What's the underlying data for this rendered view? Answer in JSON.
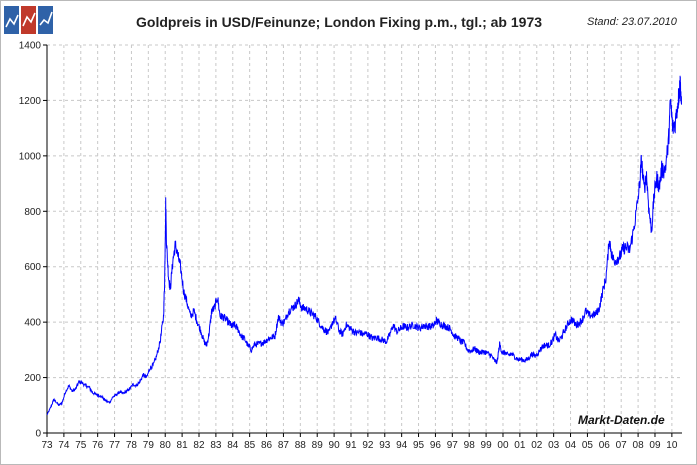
{
  "header": {
    "title": "Goldpreis in USD/Feinunze; London Fixing p.m., tgl.; ab 1973",
    "stand": "Stand: 23.07.2010",
    "watermark": "Markt-Daten.de"
  },
  "colors": {
    "series": "#0000ff",
    "grid": "#c8c8c8",
    "axis": "#000000",
    "logo_blue": "#2f62a8",
    "logo_red": "#c0392b"
  },
  "logo_icons": [
    "chart-line-icon",
    "chart-line-icon",
    "chart-line-icon"
  ],
  "chart_data": {
    "type": "line",
    "title": "Goldpreis in USD/Feinunze; London Fixing p.m., tgl.; ab 1973",
    "xlabel": "",
    "ylabel": "",
    "grid": true,
    "ylim": [
      0,
      1400
    ],
    "xlim": [
      1973.0,
      2010.6
    ],
    "yticks": [
      0,
      200,
      400,
      600,
      800,
      1000,
      1200,
      1400
    ],
    "xticks": [
      "73",
      "74",
      "75",
      "76",
      "77",
      "78",
      "79",
      "80",
      "81",
      "82",
      "83",
      "84",
      "85",
      "86",
      "87",
      "88",
      "89",
      "90",
      "91",
      "92",
      "93",
      "94",
      "95",
      "96",
      "97",
      "98",
      "99",
      "00",
      "01",
      "02",
      "03",
      "04",
      "05",
      "06",
      "07",
      "08",
      "09",
      "10"
    ],
    "series": [
      {
        "values": [
          [
            1973.0,
            65
          ],
          [
            1973.2,
            90
          ],
          [
            1973.4,
            120
          ],
          [
            1973.5,
            115
          ],
          [
            1973.7,
            100
          ],
          [
            1973.9,
            110
          ],
          [
            1974.1,
            150
          ],
          [
            1974.3,
            170
          ],
          [
            1974.5,
            150
          ],
          [
            1974.7,
            160
          ],
          [
            1974.9,
            185
          ],
          [
            1975.1,
            180
          ],
          [
            1975.3,
            170
          ],
          [
            1975.5,
            165
          ],
          [
            1975.7,
            145
          ],
          [
            1975.9,
            140
          ],
          [
            1976.1,
            135
          ],
          [
            1976.3,
            128
          ],
          [
            1976.5,
            115
          ],
          [
            1976.7,
            110
          ],
          [
            1976.9,
            130
          ],
          [
            1977.1,
            138
          ],
          [
            1977.3,
            148
          ],
          [
            1977.5,
            142
          ],
          [
            1977.7,
            150
          ],
          [
            1977.9,
            160
          ],
          [
            1978.1,
            175
          ],
          [
            1978.3,
            172
          ],
          [
            1978.5,
            185
          ],
          [
            1978.7,
            210
          ],
          [
            1978.9,
            200
          ],
          [
            1979.1,
            235
          ],
          [
            1979.3,
            245
          ],
          [
            1979.5,
            280
          ],
          [
            1979.7,
            330
          ],
          [
            1979.9,
            420
          ],
          [
            1979.97,
            560
          ],
          [
            1980.03,
            830
          ],
          [
            1980.08,
            680
          ],
          [
            1980.2,
            560
          ],
          [
            1980.3,
            520
          ],
          [
            1980.45,
            620
          ],
          [
            1980.6,
            680
          ],
          [
            1980.75,
            640
          ],
          [
            1980.9,
            600
          ],
          [
            1981.1,
            510
          ],
          [
            1981.3,
            470
          ],
          [
            1981.5,
            420
          ],
          [
            1981.7,
            440
          ],
          [
            1981.9,
            400
          ],
          [
            1982.1,
            370
          ],
          [
            1982.3,
            330
          ],
          [
            1982.45,
            315
          ],
          [
            1982.6,
            360
          ],
          [
            1982.75,
            440
          ],
          [
            1982.9,
            450
          ],
          [
            1983.1,
            490
          ],
          [
            1983.25,
            420
          ],
          [
            1983.4,
            420
          ],
          [
            1983.6,
            410
          ],
          [
            1983.8,
            395
          ],
          [
            1983.95,
            385
          ],
          [
            1984.1,
            390
          ],
          [
            1984.3,
            375
          ],
          [
            1984.5,
            350
          ],
          [
            1984.7,
            340
          ],
          [
            1984.9,
            315
          ],
          [
            1985.1,
            300
          ],
          [
            1985.3,
            320
          ],
          [
            1985.5,
            320
          ],
          [
            1985.7,
            325
          ],
          [
            1985.9,
            330
          ],
          [
            1986.1,
            340
          ],
          [
            1986.3,
            345
          ],
          [
            1986.5,
            350
          ],
          [
            1986.7,
            420
          ],
          [
            1986.9,
            395
          ],
          [
            1987.1,
            405
          ],
          [
            1987.3,
            440
          ],
          [
            1987.5,
            450
          ],
          [
            1987.7,
            460
          ],
          [
            1987.9,
            480
          ],
          [
            1988.1,
            450
          ],
          [
            1988.3,
            450
          ],
          [
            1988.5,
            440
          ],
          [
            1988.7,
            430
          ],
          [
            1988.9,
            420
          ],
          [
            1989.1,
            400
          ],
          [
            1989.3,
            380
          ],
          [
            1989.5,
            370
          ],
          [
            1989.7,
            360
          ],
          [
            1989.9,
            400
          ],
          [
            1990.1,
            410
          ],
          [
            1990.3,
            370
          ],
          [
            1990.5,
            355
          ],
          [
            1990.7,
            390
          ],
          [
            1990.9,
            380
          ],
          [
            1991.1,
            370
          ],
          [
            1991.3,
            360
          ],
          [
            1991.5,
            365
          ],
          [
            1991.7,
            355
          ],
          [
            1991.9,
            360
          ],
          [
            1992.1,
            350
          ],
          [
            1992.3,
            340
          ],
          [
            1992.5,
            345
          ],
          [
            1992.7,
            340
          ],
          [
            1992.9,
            335
          ],
          [
            1993.1,
            330
          ],
          [
            1993.3,
            355
          ],
          [
            1993.5,
            390
          ],
          [
            1993.7,
            365
          ],
          [
            1993.9,
            375
          ],
          [
            1994.1,
            385
          ],
          [
            1994.3,
            380
          ],
          [
            1994.5,
            385
          ],
          [
            1994.7,
            390
          ],
          [
            1994.9,
            383
          ],
          [
            1995.1,
            378
          ],
          [
            1995.3,
            388
          ],
          [
            1995.5,
            385
          ],
          [
            1995.7,
            384
          ],
          [
            1995.9,
            387
          ],
          [
            1996.05,
            405
          ],
          [
            1996.2,
            400
          ],
          [
            1996.4,
            390
          ],
          [
            1996.6,
            385
          ],
          [
            1996.8,
            380
          ],
          [
            1996.95,
            370
          ],
          [
            1997.1,
            350
          ],
          [
            1997.3,
            345
          ],
          [
            1997.5,
            330
          ],
          [
            1997.7,
            325
          ],
          [
            1997.9,
            300
          ],
          [
            1998.1,
            295
          ],
          [
            1998.3,
            305
          ],
          [
            1998.5,
            295
          ],
          [
            1998.7,
            290
          ],
          [
            1998.9,
            293
          ],
          [
            1999.1,
            287
          ],
          [
            1999.3,
            280
          ],
          [
            1999.5,
            260
          ],
          [
            1999.65,
            255
          ],
          [
            1999.8,
            320
          ],
          [
            1999.95,
            290
          ],
          [
            2000.1,
            290
          ],
          [
            2000.3,
            280
          ],
          [
            2000.5,
            285
          ],
          [
            2000.7,
            275
          ],
          [
            2000.9,
            265
          ],
          [
            2001.1,
            265
          ],
          [
            2001.3,
            262
          ],
          [
            2001.5,
            268
          ],
          [
            2001.7,
            285
          ],
          [
            2001.9,
            278
          ],
          [
            2002.1,
            290
          ],
          [
            2002.3,
            310
          ],
          [
            2002.5,
            318
          ],
          [
            2002.7,
            315
          ],
          [
            2002.9,
            330
          ],
          [
            2003.1,
            355
          ],
          [
            2003.3,
            330
          ],
          [
            2003.5,
            350
          ],
          [
            2003.7,
            375
          ],
          [
            2003.9,
            400
          ],
          [
            2004.1,
            410
          ],
          [
            2004.3,
            390
          ],
          [
            2004.5,
            395
          ],
          [
            2004.7,
            410
          ],
          [
            2004.9,
            440
          ],
          [
            2005.1,
            425
          ],
          [
            2005.3,
            425
          ],
          [
            2005.5,
            430
          ],
          [
            2005.7,
            450
          ],
          [
            2005.9,
            510
          ],
          [
            2006.1,
            560
          ],
          [
            2006.3,
            700
          ],
          [
            2006.45,
            640
          ],
          [
            2006.6,
            620
          ],
          [
            2006.8,
            630
          ],
          [
            2006.95,
            640
          ],
          [
            2007.1,
            665
          ],
          [
            2007.3,
            670
          ],
          [
            2007.5,
            660
          ],
          [
            2007.7,
            720
          ],
          [
            2007.9,
            800
          ],
          [
            2008.1,
            900
          ],
          [
            2008.2,
            990
          ],
          [
            2008.35,
            880
          ],
          [
            2008.5,
            930
          ],
          [
            2008.65,
            800
          ],
          [
            2008.8,
            730
          ],
          [
            2008.95,
            860
          ],
          [
            2009.1,
            920
          ],
          [
            2009.25,
            890
          ],
          [
            2009.4,
            950
          ],
          [
            2009.6,
            950
          ],
          [
            2009.8,
            1050
          ],
          [
            2009.92,
            1200
          ],
          [
            2010.05,
            1100
          ],
          [
            2010.2,
            1120
          ],
          [
            2010.35,
            1190
          ],
          [
            2010.45,
            1240
          ],
          [
            2010.5,
            1260
          ],
          [
            2010.57,
            1185
          ]
        ]
      }
    ]
  }
}
